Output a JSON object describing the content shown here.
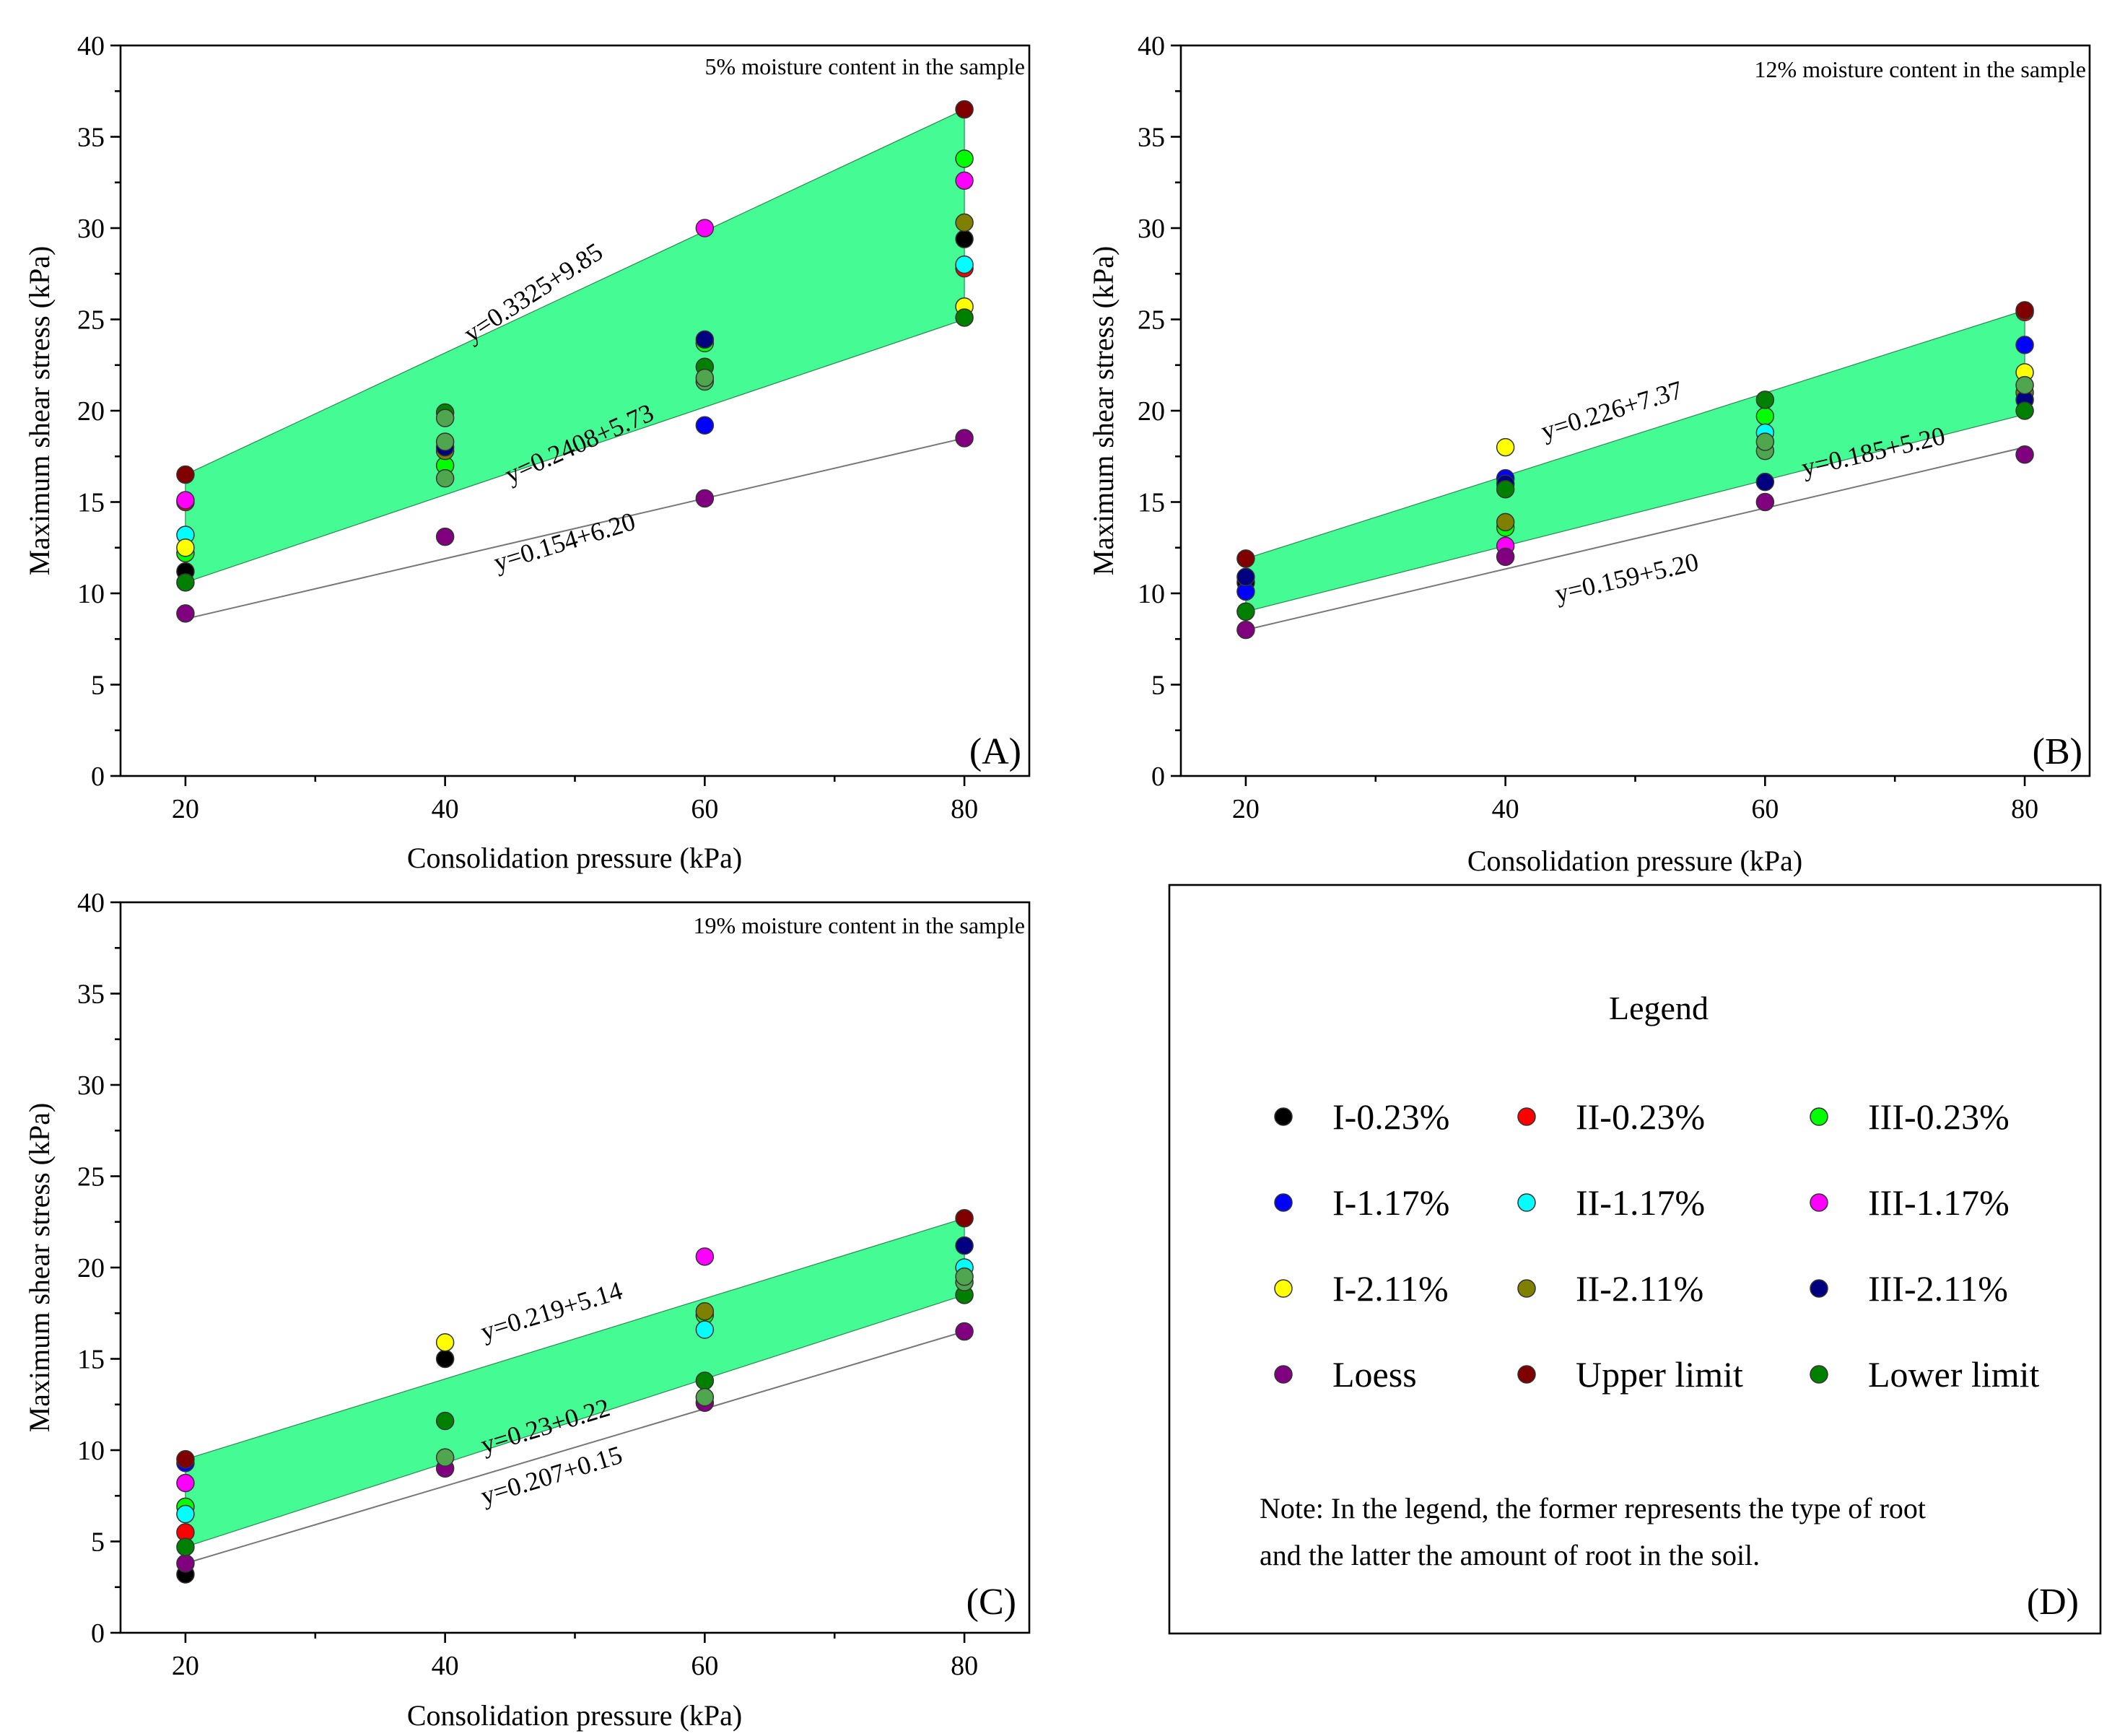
{
  "chart_data": [
    {
      "type": "scatter",
      "panel": "(A)",
      "annotation": "5% moisture content in the sample",
      "xlabel": "Consolidation pressure (kPa)",
      "ylabel": "Maximum shear stress (kPa)",
      "xlim": [
        15,
        85
      ],
      "ylim": [
        0,
        40
      ],
      "xticks": [
        20,
        40,
        60,
        80
      ],
      "yticks": [
        0,
        5,
        10,
        15,
        20,
        25,
        30,
        35,
        40
      ],
      "band": {
        "upper": [
          [
            20,
            16.5
          ],
          [
            80,
            36.5
          ]
        ],
        "lower": [
          [
            20,
            10.6
          ],
          [
            80,
            25.0
          ]
        ]
      },
      "loess_line": [
        [
          20,
          8.6
        ],
        [
          80,
          18.5
        ]
      ],
      "equations": [
        {
          "text": "y=0.3325+9.85",
          "x": 42,
          "y": 23.7,
          "angle": 33
        },
        {
          "text": "y=0.2408+5.73",
          "x": 45,
          "y": 16.0,
          "angle": 24
        },
        {
          "text": "y=0.154+6.20",
          "x": 44,
          "y": 11.2,
          "angle": 17
        }
      ],
      "series": [
        {
          "name": "I-0.23%",
          "points": [
            [
              20,
              11.2
            ],
            [
              80,
              29.4
            ]
          ]
        },
        {
          "name": "II-0.23%",
          "points": [
            [
              20,
              15.0
            ],
            [
              80,
              27.8
            ]
          ]
        },
        {
          "name": "III-0.23%",
          "points": [
            [
              20,
              12.2
            ],
            [
              40,
              17.0
            ],
            [
              60,
              23.7
            ],
            [
              80,
              33.8
            ]
          ]
        },
        {
          "name": "I-1.17%",
          "points": [
            [
              60,
              19.2
            ]
          ]
        },
        {
          "name": "II-1.17%",
          "points": [
            [
              20,
              13.2
            ],
            [
              80,
              28.0
            ]
          ]
        },
        {
          "name": "III-1.17%",
          "points": [
            [
              20,
              15.1
            ],
            [
              60,
              30.0
            ],
            [
              80,
              32.6
            ]
          ]
        },
        {
          "name": "I-2.11%",
          "points": [
            [
              20,
              12.5
            ],
            [
              80,
              25.7
            ]
          ]
        },
        {
          "name": "II-2.11%",
          "points": [
            [
              40,
              17.8
            ],
            [
              80,
              30.3
            ]
          ]
        },
        {
          "name": "III-2.11%",
          "points": [
            [
              40,
              18.0
            ],
            [
              60,
              23.9
            ]
          ]
        },
        {
          "name": "Loess",
          "points": [
            [
              20,
              8.9
            ],
            [
              40,
              13.1
            ],
            [
              60,
              15.2
            ],
            [
              80,
              18.5
            ]
          ]
        },
        {
          "name": "Upper limit",
          "points": [
            [
              20,
              16.5
            ],
            [
              80,
              36.5
            ]
          ]
        },
        {
          "name": "Lower limit",
          "points": [
            [
              20,
              10.6
            ],
            [
              40,
              19.9
            ],
            [
              60,
              22.4
            ],
            [
              80,
              25.1
            ]
          ]
        },
        {
          "name": "Other",
          "points": [
            [
              40,
              16.3
            ],
            [
              40,
              19.6
            ],
            [
              40,
              18.3
            ],
            [
              60,
              21.6
            ],
            [
              60,
              21.8
            ]
          ]
        }
      ]
    },
    {
      "type": "scatter",
      "panel": "(B)",
      "annotation": "12% moisture content in the sample",
      "xlabel": "Consolidation pressure (kPa)",
      "ylabel": "Maximum shear stress (kPa)",
      "xlim": [
        15,
        85
      ],
      "ylim": [
        0,
        40
      ],
      "xticks": [
        20,
        40,
        60,
        80
      ],
      "yticks": [
        0,
        5,
        10,
        15,
        20,
        25,
        30,
        35,
        40
      ],
      "band": {
        "upper": [
          [
            20,
            11.9
          ],
          [
            80,
            25.5
          ]
        ],
        "lower": [
          [
            20,
            9.0
          ],
          [
            80,
            19.8
          ]
        ]
      },
      "loess_line": [
        [
          20,
          8.0
        ],
        [
          80,
          18.0
        ]
      ],
      "equations": [
        {
          "text": "y=0.226+7.37",
          "x": 43,
          "y": 18.4,
          "angle": 17
        },
        {
          "text": "y=0.185+5.20",
          "x": 63,
          "y": 16.4,
          "angle": 13
        },
        {
          "text": "y=0.159+5.20",
          "x": 44,
          "y": 9.5,
          "angle": 13
        }
      ],
      "series": [
        {
          "name": "I-0.23%",
          "points": [
            [
              20,
              10.6
            ]
          ]
        },
        {
          "name": "II-0.23%",
          "points": [
            [
              80,
              25.4
            ]
          ]
        },
        {
          "name": "III-0.23%",
          "points": [
            [
              40,
              13.6
            ],
            [
              60,
              19.7
            ]
          ]
        },
        {
          "name": "I-1.17%",
          "points": [
            [
              20,
              10.1
            ],
            [
              40,
              16.3
            ],
            [
              80,
              23.6
            ]
          ]
        },
        {
          "name": "II-1.17%",
          "points": [
            [
              60,
              18.8
            ]
          ]
        },
        {
          "name": "III-1.17%",
          "points": [
            [
              40,
              12.6
            ]
          ]
        },
        {
          "name": "I-2.11%",
          "points": [
            [
              40,
              18.0
            ],
            [
              80,
              22.1
            ]
          ]
        },
        {
          "name": "II-2.11%",
          "points": [
            [
              40,
              13.9
            ],
            [
              80,
              21.0
            ]
          ]
        },
        {
          "name": "III-2.11%",
          "points": [
            [
              20,
              10.9
            ],
            [
              40,
              16.0
            ],
            [
              60,
              16.1
            ],
            [
              80,
              20.6
            ]
          ]
        },
        {
          "name": "Loess",
          "points": [
            [
              20,
              8.0
            ],
            [
              40,
              12.0
            ],
            [
              60,
              15.0
            ],
            [
              80,
              17.6
            ]
          ]
        },
        {
          "name": "Upper limit",
          "points": [
            [
              20,
              11.9
            ],
            [
              80,
              25.5
            ]
          ]
        },
        {
          "name": "Lower limit",
          "points": [
            [
              20,
              9.0
            ],
            [
              40,
              15.7
            ],
            [
              60,
              20.6
            ],
            [
              80,
              20.0
            ]
          ]
        },
        {
          "name": "Other",
          "points": [
            [
              60,
              17.8
            ],
            [
              60,
              18.3
            ],
            [
              80,
              21.4
            ]
          ]
        }
      ]
    },
    {
      "type": "scatter",
      "panel": "(C)",
      "annotation": "19% moisture content in the sample",
      "xlabel": "Consolidation pressure (kPa)",
      "ylabel": "Maximum shear stress (kPa)",
      "xlim": [
        15,
        85
      ],
      "ylim": [
        0,
        40
      ],
      "xticks": [
        20,
        40,
        60,
        80
      ],
      "yticks": [
        0,
        5,
        10,
        15,
        20,
        25,
        30,
        35,
        40
      ],
      "band": {
        "upper": [
          [
            20,
            9.5
          ],
          [
            80,
            22.7
          ]
        ],
        "lower": [
          [
            20,
            4.7
          ],
          [
            80,
            18.5
          ]
        ]
      },
      "loess_line": [
        [
          20,
          3.8
        ],
        [
          80,
          16.5
        ]
      ],
      "equations": [
        {
          "text": "y=0.219+5.14",
          "x": 43,
          "y": 16.0,
          "angle": 17
        },
        {
          "text": "y=0.23+0.22",
          "x": 43,
          "y": 9.8,
          "angle": 17
        },
        {
          "text": "y=0.207+0.15",
          "x": 43,
          "y": 7.0,
          "angle": 17
        }
      ],
      "series": [
        {
          "name": "I-0.23%",
          "points": [
            [
              20,
              3.2
            ],
            [
              40,
              15.0
            ]
          ]
        },
        {
          "name": "II-0.23%",
          "points": [
            [
              20,
              5.5
            ]
          ]
        },
        {
          "name": "III-0.23%",
          "points": [
            [
              20,
              6.9
            ],
            [
              60,
              17.4
            ]
          ]
        },
        {
          "name": "I-1.17%",
          "points": [
            [
              20,
              9.3
            ]
          ]
        },
        {
          "name": "II-1.17%",
          "points": [
            [
              20,
              6.5
            ],
            [
              60,
              16.6
            ],
            [
              80,
              20.0
            ]
          ]
        },
        {
          "name": "III-1.17%",
          "points": [
            [
              20,
              8.2
            ],
            [
              60,
              20.6
            ]
          ]
        },
        {
          "name": "I-2.11%",
          "points": [
            [
              40,
              15.9
            ]
          ]
        },
        {
          "name": "II-2.11%",
          "points": [
            [
              60,
              17.6
            ]
          ]
        },
        {
          "name": "III-2.11%",
          "points": [
            [
              80,
              21.2
            ]
          ]
        },
        {
          "name": "Loess",
          "points": [
            [
              20,
              3.8
            ],
            [
              40,
              9.0
            ],
            [
              60,
              12.6
            ],
            [
              80,
              16.5
            ]
          ]
        },
        {
          "name": "Upper limit",
          "points": [
            [
              20,
              9.5
            ],
            [
              80,
              22.7
            ]
          ]
        },
        {
          "name": "Lower limit",
          "points": [
            [
              20,
              4.7
            ],
            [
              40,
              11.6
            ],
            [
              60,
              13.8
            ],
            [
              80,
              18.5
            ]
          ]
        },
        {
          "name": "Other",
          "points": [
            [
              40,
              9.6
            ],
            [
              60,
              12.9
            ],
            [
              80,
              19.2
            ],
            [
              80,
              19.5
            ]
          ]
        }
      ]
    }
  ],
  "legend": {
    "panel": "(D)",
    "title": "Legend",
    "items": [
      {
        "label": "I-0.23%",
        "color": "#000000"
      },
      {
        "label": "II-0.23%",
        "color": "#ff0000"
      },
      {
        "label": "III-0.23%",
        "color": "#00ff00"
      },
      {
        "label": "I-1.17%",
        "color": "#0000ff"
      },
      {
        "label": "II-1.17%",
        "color": "#00ffff"
      },
      {
        "label": "III-1.17%",
        "color": "#ff00ff"
      },
      {
        "label": "I-2.11%",
        "color": "#ffff00"
      },
      {
        "label": "II-2.11%",
        "color": "#808000"
      },
      {
        "label": "III-2.11%",
        "color": "#000080"
      },
      {
        "label": "Loess",
        "color": "#800080"
      },
      {
        "label": "Upper limit",
        "color": "#800000"
      },
      {
        "label": "Lower limit",
        "color": "#008000"
      }
    ],
    "note_line1": "Note: In the legend, the former represents the type of root",
    "note_line2": "and the latter the amount of root in the soil."
  },
  "colors": {
    "band_fill": "#45fc94",
    "band_edge": "#2a8a50",
    "loess_line": "#777777",
    "Other": "#4fa64f"
  }
}
